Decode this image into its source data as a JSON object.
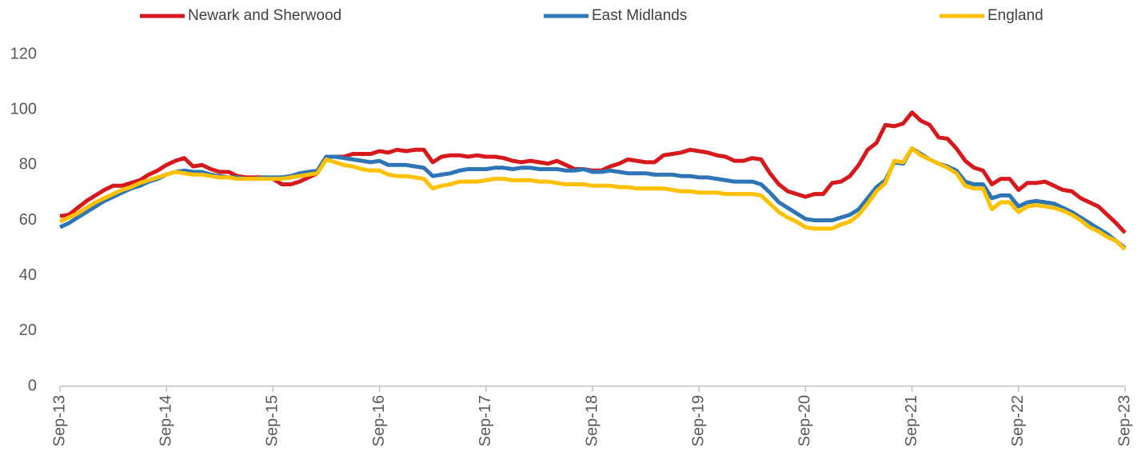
{
  "chart_data": {
    "type": "line",
    "legend": "top",
    "grid": false,
    "categories": [
      "Sep-13",
      null,
      null,
      null,
      null,
      null,
      null,
      null,
      null,
      null,
      null,
      null,
      "Sep-14",
      null,
      null,
      null,
      null,
      null,
      null,
      null,
      null,
      null,
      null,
      null,
      "Sep-15",
      null,
      null,
      null,
      null,
      null,
      null,
      null,
      null,
      null,
      null,
      null,
      "Sep-16",
      null,
      null,
      null,
      null,
      null,
      null,
      null,
      null,
      null,
      null,
      null,
      "Sep-17",
      null,
      null,
      null,
      null,
      null,
      null,
      null,
      null,
      null,
      null,
      null,
      "Sep-18",
      null,
      null,
      null,
      null,
      null,
      null,
      null,
      null,
      null,
      null,
      null,
      "Sep-19",
      null,
      null,
      null,
      null,
      null,
      null,
      null,
      null,
      null,
      null,
      null,
      "Sep-20",
      null,
      null,
      null,
      null,
      null,
      null,
      null,
      null,
      null,
      null,
      null,
      "Sep-21",
      null,
      null,
      null,
      null,
      null,
      null,
      null,
      null,
      null,
      null,
      null,
      "Sep-22",
      null,
      null,
      null,
      null,
      null,
      null,
      null,
      null,
      null,
      null,
      null,
      "Sep-23"
    ],
    "series": [
      {
        "name": "Newark and Sherwood",
        "color": "#d7191c",
        "values": [
          61.5,
          62,
          64.5,
          67,
          69,
          71,
          72.5,
          72.5,
          73.5,
          74.5,
          76.5,
          78,
          80,
          81.5,
          82.5,
          79.5,
          80,
          78.5,
          77.5,
          77.5,
          76,
          75.5,
          75.5,
          75.5,
          75,
          73,
          73,
          74,
          75.5,
          77,
          83,
          83,
          83,
          84,
          84,
          84,
          85,
          84.5,
          85.5,
          85,
          85.5,
          85.5,
          81,
          83,
          83.5,
          83.5,
          83,
          83.5,
          83,
          83,
          82.5,
          81.5,
          81,
          81.5,
          81,
          80.5,
          81.5,
          80,
          78.5,
          78.5,
          78,
          78,
          79.5,
          80.5,
          82,
          81.5,
          81,
          81,
          83.5,
          84,
          84.5,
          85.5,
          85,
          84.5,
          83.5,
          83,
          81.5,
          81.5,
          82.5,
          82,
          77,
          73,
          70.5,
          69.5,
          68.5,
          69.5,
          69.5,
          73.5,
          74,
          76,
          80,
          85.5,
          88,
          94.5,
          94,
          95,
          99,
          96,
          94.5,
          90,
          89.5,
          86,
          81.5,
          79,
          78,
          73,
          75,
          75,
          71,
          73.5,
          73.5,
          74,
          72.5,
          71,
          70.5,
          68,
          66.5,
          65,
          62,
          59,
          55.5
        ]
      },
      {
        "name": "East Midlands",
        "color": "#2e75b6",
        "values": [
          57.5,
          59,
          61,
          63,
          65,
          67,
          68.5,
          70,
          71.5,
          72.5,
          74,
          75,
          76.5,
          77.5,
          78,
          77.5,
          77.5,
          76.5,
          76,
          75.5,
          75.5,
          75,
          75,
          75.5,
          75.5,
          75.5,
          76,
          77,
          77.5,
          78,
          83,
          83,
          82.5,
          82,
          81.5,
          81,
          81.5,
          80,
          80,
          80,
          79.5,
          79,
          76,
          76.5,
          77,
          78,
          78.5,
          78.5,
          78.5,
          79,
          79,
          78.5,
          79,
          79,
          78.5,
          78.5,
          78.5,
          78,
          78,
          78.5,
          77.5,
          77.5,
          78,
          77.5,
          77,
          77,
          77,
          76.5,
          76.5,
          76.5,
          76,
          76,
          75.5,
          75.5,
          75,
          74.5,
          74,
          74,
          74,
          73,
          70,
          66.5,
          64.5,
          62.5,
          60.5,
          60,
          60,
          60,
          61,
          62,
          64,
          68,
          72,
          74.5,
          81,
          80.5,
          86,
          84,
          82,
          80.5,
          79.5,
          78,
          74,
          73,
          73,
          68,
          69,
          69,
          65,
          66.5,
          67,
          66.5,
          66,
          64.5,
          63,
          61,
          59,
          57,
          55,
          52.5,
          50
        ]
      },
      {
        "name": "England",
        "color": "#ffc000",
        "values": [
          59.5,
          61,
          62.5,
          64.5,
          66.5,
          68,
          69.5,
          71,
          72,
          73.5,
          74.5,
          75.5,
          76.5,
          77.5,
          77,
          76.5,
          76.5,
          76,
          75.5,
          75.5,
          75,
          75,
          75,
          75,
          75,
          75,
          75.5,
          76,
          76.5,
          77,
          82,
          81,
          80,
          79.5,
          78.5,
          78,
          78,
          76.5,
          76,
          76,
          75.5,
          75,
          71.5,
          72.5,
          73,
          74,
          74,
          74,
          74.5,
          75,
          75,
          74.5,
          74.5,
          74.5,
          74,
          74,
          73.5,
          73,
          73,
          73,
          72.5,
          72.5,
          72.5,
          72,
          72,
          71.5,
          71.5,
          71.5,
          71.5,
          71,
          70.5,
          70.5,
          70,
          70,
          70,
          69.5,
          69.5,
          69.5,
          69.5,
          69,
          66,
          63,
          61,
          59.5,
          57.5,
          57,
          57,
          57,
          58.5,
          59.5,
          62,
          66,
          70.5,
          73.5,
          81.5,
          81,
          86,
          83.5,
          82,
          80.5,
          79,
          77,
          72.5,
          71.5,
          71.5,
          64,
          66.5,
          66.5,
          63,
          65,
          65.5,
          65,
          64.5,
          63.5,
          62,
          60,
          57.5,
          56,
          54,
          52.5,
          49.5
        ]
      }
    ],
    "ylim": [
      0,
      120
    ],
    "yticks": [
      0,
      20,
      40,
      60,
      80,
      100,
      120
    ]
  }
}
